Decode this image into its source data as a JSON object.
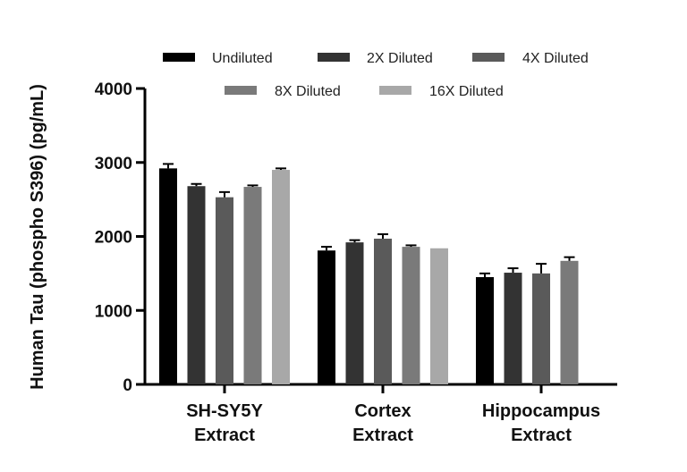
{
  "chart_data": {
    "type": "bar",
    "title": "",
    "xlabel": "",
    "ylabel": "Human Tau (phospho S396) (pg/mL)",
    "ylim": [
      0,
      4000
    ],
    "yticks": [
      0,
      1000,
      2000,
      3000,
      4000
    ],
    "categories": [
      [
        "SH-SY5Y",
        "Extract"
      ],
      [
        "Cortex",
        "Extract"
      ],
      [
        "Hippocampus",
        "Extract"
      ]
    ],
    "legend_position": "top",
    "series": [
      {
        "name": "Undiluted",
        "color": "#000000",
        "values": [
          2920,
          1810,
          1450
        ],
        "errors": [
          60,
          50,
          50
        ]
      },
      {
        "name": "2X Diluted",
        "color": "#333333",
        "values": [
          2680,
          1920,
          1510
        ],
        "errors": [
          30,
          30,
          60
        ]
      },
      {
        "name": "4X Diluted",
        "color": "#5a5a5a",
        "values": [
          2530,
          1970,
          1500
        ],
        "errors": [
          70,
          60,
          130
        ]
      },
      {
        "name": "8X Diluted",
        "color": "#7a7a7a",
        "values": [
          2670,
          1860,
          1670
        ],
        "errors": [
          20,
          20,
          50
        ]
      },
      {
        "name": "16X Diluted",
        "color": "#a8a8a8",
        "values": [
          2900,
          1840,
          null
        ],
        "errors": [
          20,
          0,
          null
        ]
      }
    ]
  }
}
